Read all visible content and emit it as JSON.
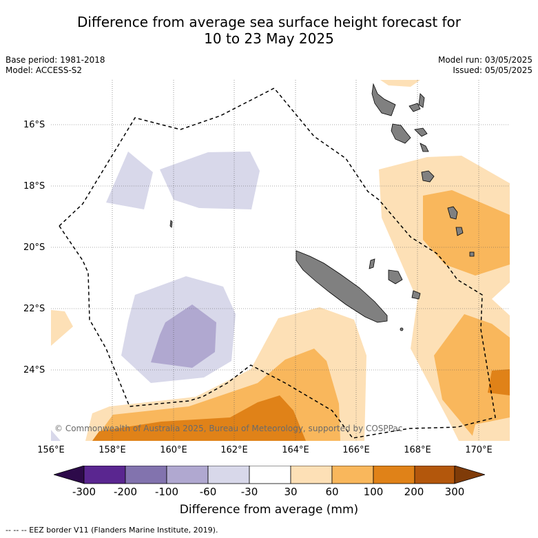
{
  "header": {
    "title_line1": "Difference from average sea surface height forecast for",
    "title_line2": "10 to 23 May 2025",
    "base_period": "Base period: 1981-2018",
    "model": "Model: ACCESS-S2",
    "model_run": "Model run: 03/05/2025",
    "issued": "Issued: 05/05/2025"
  },
  "map": {
    "lat_labels": [
      "16°S",
      "18°S",
      "20°S",
      "22°S",
      "24°S"
    ],
    "lon_labels": [
      "156°E",
      "158°E",
      "160°E",
      "162°E",
      "164°E",
      "166°E",
      "168°E",
      "170°E"
    ],
    "copyright": "© Commonwealth of Australia 2025, Bureau of Meteorology, supported by COSPPac",
    "land_color": "#808080",
    "eez_line_style": "dashed"
  },
  "colorbar": {
    "ticks": [
      "-300",
      "-200",
      "-100",
      "-60",
      "-30",
      "30",
      "60",
      "100",
      "200",
      "300"
    ],
    "colors": [
      "#2d0a4a",
      "#5a2690",
      "#8273ae",
      "#b0a8d0",
      "#d8d8ea",
      "#ffffff",
      "#fde0b6",
      "#f9b75c",
      "#e08218",
      "#b3570c",
      "#7f3b08"
    ],
    "label": "Difference from average (mm)"
  },
  "legend_note": "--  --  -- EEZ border V11 (Flanders Marine Institute, 2019)."
}
